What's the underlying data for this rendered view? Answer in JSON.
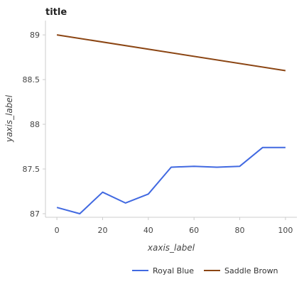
{
  "chart_data": {
    "type": "line",
    "title": "title",
    "xlabel": "xaxis_label",
    "ylabel": "yaxis_label",
    "xlim": [
      -5,
      105
    ],
    "ylim": [
      86.96,
      89.16
    ],
    "x_ticks": [
      0,
      20,
      40,
      60,
      80,
      100
    ],
    "y_ticks": [
      87,
      87.5,
      88,
      88.5,
      89
    ],
    "y_tick_labels": [
      "87",
      "87.5",
      "88",
      "88.5",
      "89"
    ],
    "grid": false,
    "legend_position": "bottom",
    "series": [
      {
        "name": "Royal Blue",
        "color": "#4169e1",
        "x": [
          0,
          10,
          20,
          30,
          40,
          50,
          60,
          70,
          80,
          90,
          100
        ],
        "y": [
          87.07,
          87.0,
          87.24,
          87.12,
          87.22,
          87.52,
          87.53,
          87.52,
          87.53,
          87.74,
          87.74
        ]
      },
      {
        "name": "Saddle Brown",
        "color": "#8b4513",
        "x": [
          0,
          100
        ],
        "y": [
          89.0,
          88.6
        ]
      }
    ]
  }
}
